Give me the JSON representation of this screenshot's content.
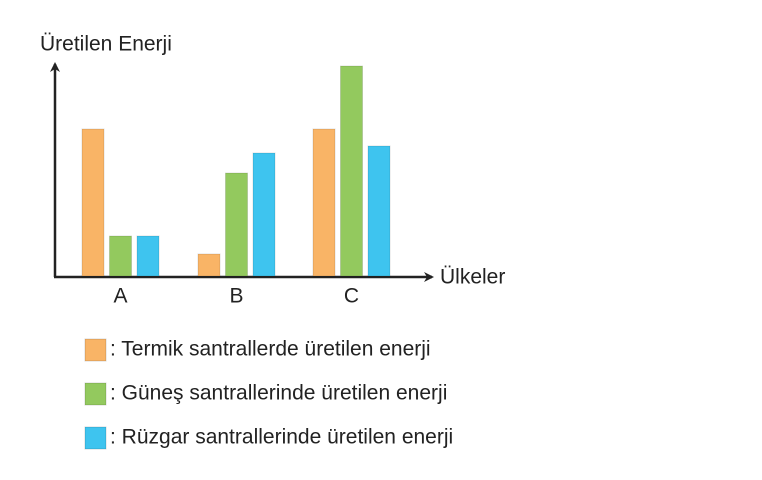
{
  "chart_data": {
    "type": "bar",
    "title": "Üretilen Enerji",
    "x_label": "Ülkeler",
    "categories": [
      "A",
      "B",
      "C"
    ],
    "series": [
      {
        "name": ": Termik santrallerde üretilen enerji",
        "color": "#f9b466",
        "values": [
          147,
          22,
          147
        ]
      },
      {
        "name": ": Güneş santrallerinde üretilen enerji",
        "color": "#93c95e",
        "values": [
          40,
          103,
          210
        ]
      },
      {
        "name": ": Rüzgar santrallerinde üretilen enerji",
        "color": "#3ec4ef",
        "values": [
          40,
          123,
          130
        ]
      }
    ],
    "ylim": [
      0,
      210
    ]
  }
}
